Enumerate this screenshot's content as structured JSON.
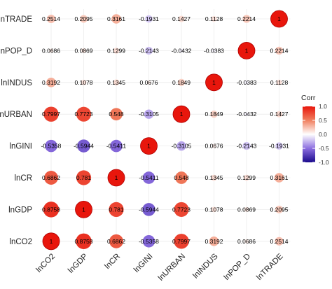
{
  "chart_data": {
    "type": "heatmap",
    "variables_bottom_to_top": [
      "lnCO2",
      "lnGDP",
      "lnCR",
      "lnGINI",
      "lnURBAN",
      "lnINDUS",
      "lnPOP_D",
      "lnTRADE"
    ],
    "variables_left_to_right": [
      "lnCO2",
      "lnGDP",
      "lnCR",
      "lnGINI",
      "lnURBAN",
      "lnINDUS",
      "lnPOP_D",
      "lnTRADE"
    ],
    "display_labels": {
      "lnCO2": "lnCO2",
      "lnGDP": "lnGDP",
      "lnCR": "lnCR",
      "lnGINI": "lnGINI",
      "lnURBAN": "lnURBAN",
      "lnINDUS": "lnINDUS",
      "lnPOP_D": "lnPOP_D",
      "lnTRADE": "lnTRADE"
    },
    "matrix_rows": [
      {
        "row": "lnTRADE",
        "values": [
          "0.2514",
          "0.2095",
          "0.3161",
          "-0.1931",
          "0.1427",
          "0.1128",
          "0.2214",
          "1"
        ]
      },
      {
        "row": "lnPOP_D",
        "values": [
          "0.0686",
          "0.0869",
          "0.1299",
          "-0.2143",
          "-0.0432",
          "-0.0383",
          "1",
          "0.2214"
        ]
      },
      {
        "row": "lnINDUS",
        "values": [
          "0.3192",
          "0.1078",
          "0.1345",
          "0.0676",
          "0.1849",
          "1",
          "-0.0383",
          "0.1128"
        ]
      },
      {
        "row": "lnURBAN",
        "values": [
          "0.7997",
          "0.7723",
          "0.548",
          "-0.3105",
          "1",
          "0.1849",
          "-0.0432",
          "0.1427"
        ]
      },
      {
        "row": "lnGINI",
        "values": [
          "-0.5358",
          "-0.5944",
          "-0.5411",
          "1",
          "-0.3105",
          "0.0676",
          "-0.2143",
          "-0.1931"
        ]
      },
      {
        "row": "lnCR",
        "values": [
          "0.6862",
          "0.781",
          "1",
          "-0.5411",
          "0.548",
          "0.1345",
          "0.1299",
          "0.3161"
        ]
      },
      {
        "row": "lnGDP",
        "values": [
          "0.8758",
          "1",
          "0.781",
          "-0.5944",
          "0.7723",
          "0.1078",
          "0.0869",
          "0.2095"
        ]
      },
      {
        "row": "lnCO2",
        "values": [
          "1",
          "0.8758",
          "0.6862",
          "-0.5358",
          "0.7997",
          "0.3192",
          "0.0686",
          "0.2514"
        ]
      }
    ],
    "legend": {
      "title": "Corr",
      "ticks": [
        "1.0",
        "0.5",
        "0.0",
        "-0.5",
        "-1.0"
      ],
      "range": [
        -1,
        1
      ],
      "position": "right"
    },
    "colors": {
      "negative": "#1a0a8c",
      "mid_negative": "#8c6ee0",
      "zero": "#ffffff",
      "mid_positive": "#f08060",
      "positive": "#e8160c"
    },
    "grid": true
  }
}
